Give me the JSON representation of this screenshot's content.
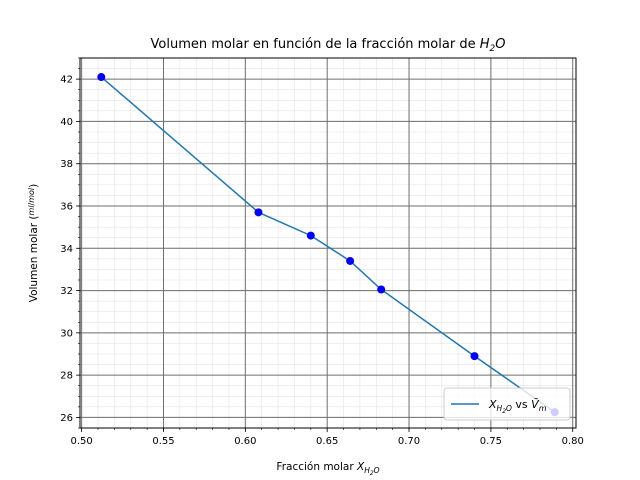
{
  "chart_data": {
    "type": "line",
    "title": "Volumen molar en función de la fracción molar de H2O",
    "xlabel": "Fracción molar X_H2O",
    "ylabel": "Volumen molar (ml/mol)",
    "xlim": [
      0.499,
      0.802
    ],
    "ylim": [
      25.5,
      43.0
    ],
    "xticks": [
      0.5,
      0.55,
      0.6,
      0.65,
      0.7,
      0.75,
      0.8
    ],
    "xtick_labels": [
      "0.50",
      "0.55",
      "0.60",
      "0.65",
      "0.70",
      "0.75",
      "0.80"
    ],
    "yticks": [
      26,
      28,
      30,
      32,
      34,
      36,
      38,
      40,
      42
    ],
    "ytick_labels": [
      "26",
      "28",
      "30",
      "32",
      "34",
      "36",
      "38",
      "40",
      "42"
    ],
    "grid": true,
    "minor_grid": true,
    "legend_position": "lower-right",
    "series": [
      {
        "name": "X_H2O vs V̄m",
        "color": "#1f77b4",
        "marker_color": "#0000ff",
        "x": [
          0.512,
          0.608,
          0.64,
          0.664,
          0.683,
          0.74,
          0.789
        ],
        "y": [
          42.1,
          35.7,
          34.6,
          33.4,
          32.05,
          28.9,
          26.25
        ]
      }
    ]
  }
}
